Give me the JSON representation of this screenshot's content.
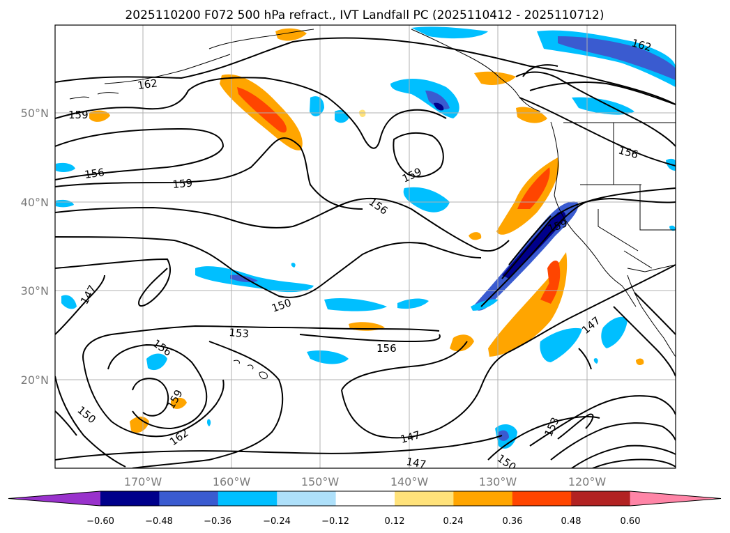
{
  "title": "2025110200 F072 500 hPa refract., IVT Landfall PC (2025110412 - 2025110712)",
  "lat_ticks": [
    "50°N",
    "40°N",
    "30°N",
    "20°N"
  ],
  "lon_ticks": [
    "170°W",
    "160°W",
    "150°W",
    "140°W",
    "130°W",
    "120°W"
  ],
  "contour_labels": [
    "162",
    "159",
    "156",
    "159",
    "156",
    "162",
    "159",
    "156",
    "156",
    "159",
    "150",
    "147",
    "153",
    "156",
    "147",
    "147",
    "159",
    "150",
    "162",
    "147",
    "153",
    "150",
    "153"
  ],
  "colorbar": {
    "ticks": [
      "−0.60",
      "−0.48",
      "−0.36",
      "−0.24",
      "−0.12",
      "0.12",
      "0.24",
      "0.36",
      "0.48",
      "0.60"
    ],
    "colors": [
      "#9932cc",
      "#00008b",
      "#3a5bd0",
      "#00bfff",
      "#aee0fa",
      "#ffffff",
      "#ffe27a",
      "#ffa500",
      "#ff4500",
      "#b22222",
      "#ff85a7"
    ]
  },
  "colors": {
    "contour": "#000000",
    "grid": "#b0b0b0",
    "coast": "#000000"
  }
}
